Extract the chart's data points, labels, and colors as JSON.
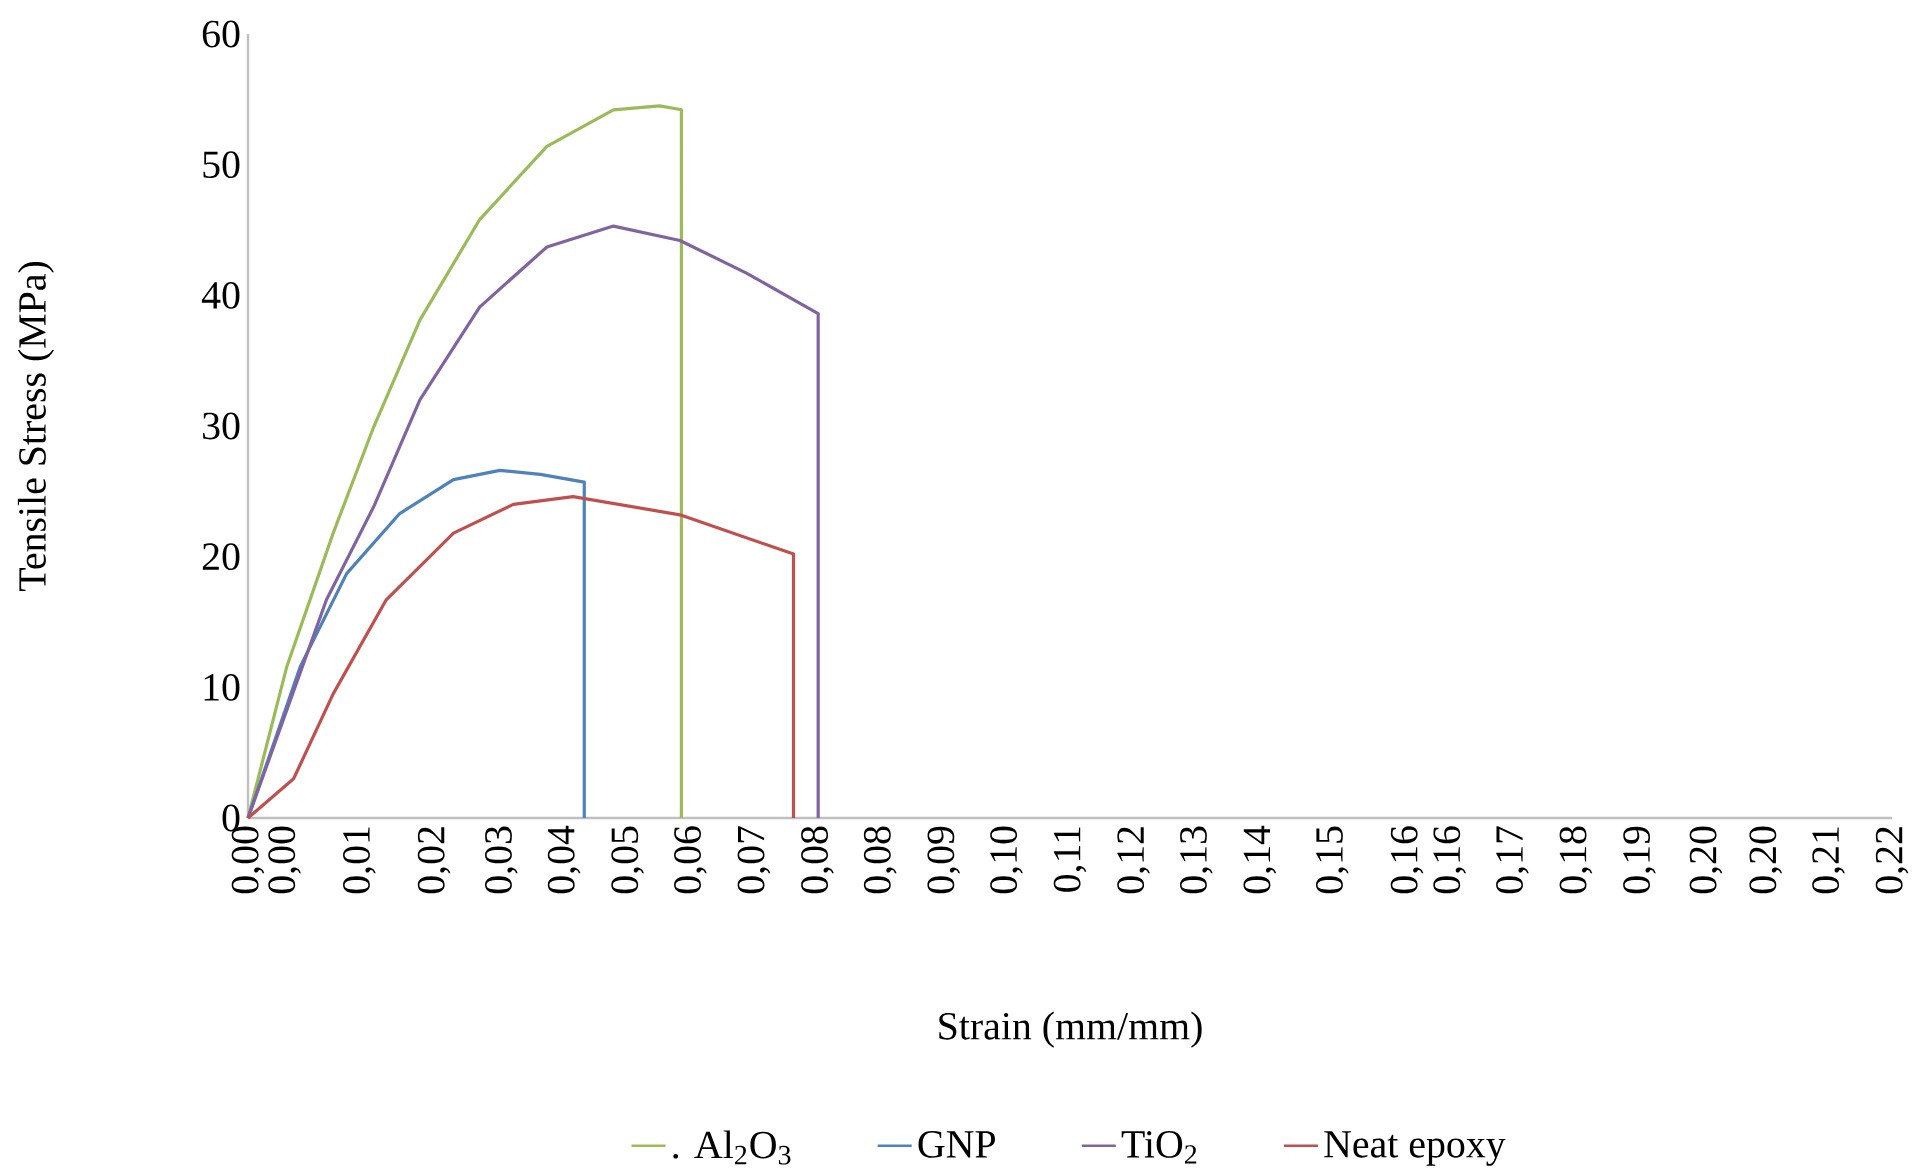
{
  "chart_data": {
    "type": "line",
    "xlabel": "Strain (mm/mm)",
    "ylabel": "Tensile Stress (MPa)",
    "xlim": [
      0,
      0.22
    ],
    "ylim": [
      0,
      60
    ],
    "xticks": [
      {
        "value": 0,
        "label": "0,00"
      },
      {
        "value": 0.0049,
        "label": "0,00"
      },
      {
        "value": 0.0149,
        "label": "0,01"
      },
      {
        "value": 0.0249,
        "label": "0,02"
      },
      {
        "value": 0.0339,
        "label": "0,03"
      },
      {
        "value": 0.0423,
        "label": "0,04"
      },
      {
        "value": 0.0508,
        "label": "0,05"
      },
      {
        "value": 0.0592,
        "label": "0,06"
      },
      {
        "value": 0.0677,
        "label": "0,07"
      },
      {
        "value": 0.0762,
        "label": "0,08"
      },
      {
        "value": 0.0846,
        "label": "0,08"
      },
      {
        "value": 0.0931,
        "label": "0,09"
      },
      {
        "value": 0.1015,
        "label": "0,10"
      },
      {
        "value": 0.11,
        "label": "0,11"
      },
      {
        "value": 0.1185,
        "label": "0,12"
      },
      {
        "value": 0.1269,
        "label": "0,13"
      },
      {
        "value": 0.1354,
        "label": "0,14"
      },
      {
        "value": 0.1451,
        "label": "0,15"
      },
      {
        "value": 0.1551,
        "label": "0,16"
      },
      {
        "value": 0.1608,
        "label": "0,16"
      },
      {
        "value": 0.1692,
        "label": "0,17"
      },
      {
        "value": 0.1777,
        "label": "0,18"
      },
      {
        "value": 0.1862,
        "label": "0,19"
      },
      {
        "value": 0.1951,
        "label": "0,20"
      },
      {
        "value": 0.2031,
        "label": "0,20"
      },
      {
        "value": 0.2115,
        "label": "0,21"
      },
      {
        "value": 0.22,
        "label": "0,22"
      }
    ],
    "yticks": [
      0,
      10,
      20,
      30,
      40,
      50,
      60
    ],
    "grid": false,
    "legend": "bottom",
    "marker": "none",
    "line_style": "solid",
    "series": [
      {
        "name": ". Al$_{2}$O$_{3}$",
        "color": "#9bbb59",
        "x": [
          0,
          0.0052,
          0.0114,
          0.0168,
          0.023,
          0.031,
          0.04,
          0.0489,
          0.0551,
          0.058,
          0.058
        ],
        "values": [
          0,
          11.6,
          21.8,
          29.9,
          38.1,
          45.8,
          51.4,
          54.2,
          54.5,
          54.2,
          0
        ]
      },
      {
        "name": "GNP",
        "color": "#4f81bd",
        "x": [
          0,
          0.007,
          0.0132,
          0.0203,
          0.0275,
          0.0337,
          0.0391,
          0.045,
          0.045
        ],
        "values": [
          0,
          11.6,
          18.7,
          23.3,
          25.9,
          26.6,
          26.3,
          25.7,
          0
        ]
      },
      {
        "name": "TiO$_{2}$",
        "color": "#8064a2",
        "x": [
          0,
          0.0105,
          0.0168,
          0.023,
          0.031,
          0.04,
          0.0489,
          0.0578,
          0.0667,
          0.0763,
          0.0763
        ],
        "values": [
          0,
          16.7,
          23.8,
          32.0,
          39.1,
          43.7,
          45.3,
          44.2,
          41.7,
          38.6,
          0
        ]
      },
      {
        "name": "Neat epoxy",
        "color": "#c0504d",
        "x": [
          0,
          0.0061,
          0.0114,
          0.0185,
          0.0275,
          0.0355,
          0.0435,
          0.0578,
          0.073,
          0.073
        ],
        "values": [
          0,
          3.0,
          9.5,
          16.7,
          21.8,
          24.0,
          24.6,
          23.2,
          20.2,
          0
        ]
      }
    ]
  }
}
